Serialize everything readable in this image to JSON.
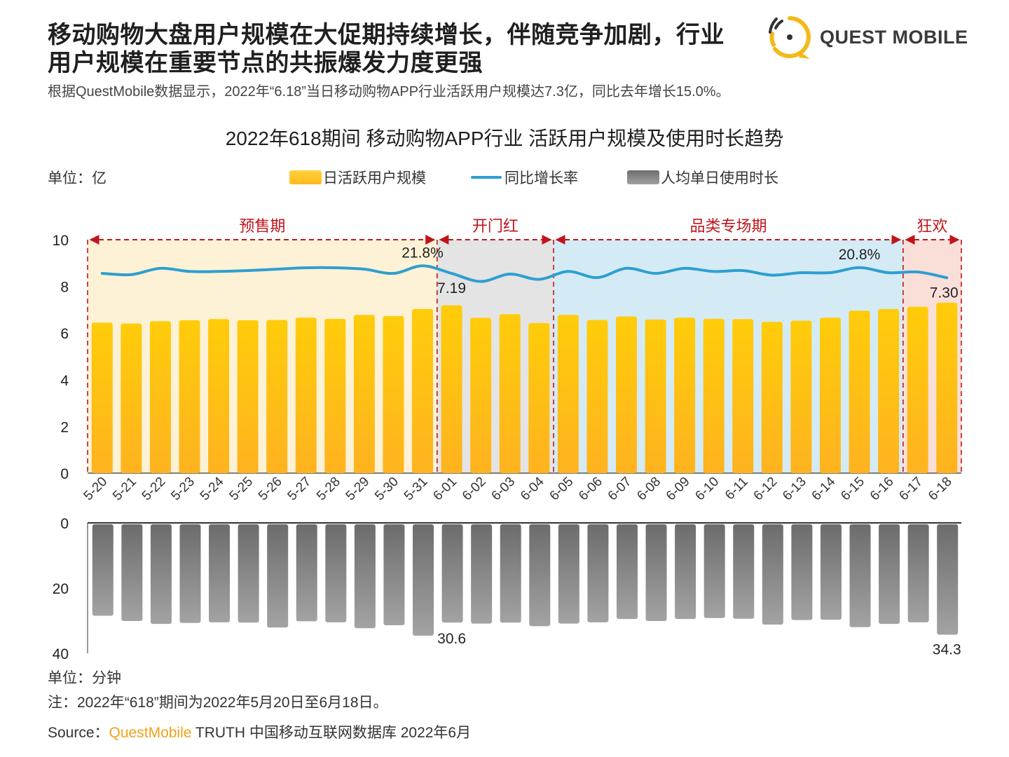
{
  "header": {
    "title_line1": "移动购物大盘用户规模在大促期持续增长，伴随竞争加剧，行业",
    "title_line2": "用户规模在重要节点的共振爆发力度更强",
    "subtitle": "根据QuestMobile数据显示，2022年“6.18”当日移动购物APP行业活跃用户规模达7.3亿，同比去年增长15.0%。",
    "logo_text": "QUEST MOBILE"
  },
  "footer": {
    "unit_bottom": "单位：分钟",
    "note": "注：2022年“618”期间为2022年5月20日至6月18日。",
    "source_prefix": "Source：",
    "source_brand": "QuestMobile",
    "source_rest": " TRUTH 中国移动互联网数据库 2022年6月"
  },
  "colors": {
    "bar_yellow": "#ffc20e",
    "line_blue": "#2e9fd0",
    "bar_gray": "#8c8c8c",
    "phase_red": "#c0141c",
    "brand_orange": "#f0a218"
  },
  "chart_data": {
    "type": "bar",
    "title": "2022年618期间 移动购物APP行业 活跃用户规模及使用时长趋势",
    "unit_top": "单位：亿",
    "categories": [
      "5-20",
      "5-21",
      "5-22",
      "5-23",
      "5-24",
      "5-25",
      "5-26",
      "5-27",
      "5-28",
      "5-29",
      "5-30",
      "5-31",
      "6-01",
      "6-02",
      "6-03",
      "6-04",
      "6-05",
      "6-06",
      "6-07",
      "6-08",
      "6-09",
      "6-10",
      "6-11",
      "6-12",
      "6-13",
      "6-14",
      "6-15",
      "6-16",
      "6-17",
      "6-18"
    ],
    "legend": [
      "日活跃用户规模",
      "同比增长率",
      "人均单日使用时长"
    ],
    "legend_position": "top",
    "phases": [
      {
        "label": "预售期",
        "start": 0,
        "end": 11,
        "color": "#fdf2d6"
      },
      {
        "label": "开门红",
        "start": 12,
        "end": 15,
        "color": "#e4e4e4"
      },
      {
        "label": "品类专场期",
        "start": 16,
        "end": 27,
        "color": "#d4ebf6"
      },
      {
        "label": "狂欢",
        "start": 28,
        "end": 29,
        "color": "#fadfd9"
      }
    ],
    "series": [
      {
        "name": "日活跃用户规模",
        "type": "bar",
        "unit": "亿",
        "values": [
          6.45,
          6.41,
          6.51,
          6.55,
          6.6,
          6.55,
          6.56,
          6.66,
          6.61,
          6.78,
          6.73,
          7.03,
          7.19,
          6.65,
          6.81,
          6.43,
          6.78,
          6.56,
          6.71,
          6.58,
          6.66,
          6.61,
          6.6,
          6.48,
          6.53,
          6.66,
          6.96,
          7.03,
          7.13,
          7.3
        ]
      },
      {
        "name": "同比增长率",
        "type": "line",
        "unit": "%",
        "values": [
          17.5,
          16.8,
          20.4,
          18.6,
          18.6,
          19.1,
          19.9,
          20.7,
          20.7,
          19.9,
          17.5,
          21.8,
          17.5,
          12.9,
          17.1,
          14.1,
          18.6,
          15.1,
          20.4,
          17.5,
          20.4,
          18.6,
          19.1,
          16.5,
          17.9,
          17.9,
          20.8,
          17.9,
          18.3,
          15.0
        ]
      },
      {
        "name": "人均单日使用时长",
        "type": "bar",
        "unit": "分钟",
        "values": [
          28.5,
          30.1,
          31.0,
          30.7,
          30.5,
          30.6,
          32.1,
          30.2,
          30.5,
          32.3,
          31.4,
          34.6,
          30.6,
          30.9,
          30.6,
          31.7,
          30.9,
          30.5,
          29.5,
          30.1,
          29.5,
          29.2,
          29.4,
          31.2,
          29.8,
          29.7,
          32.0,
          31.0,
          30.5,
          34.3
        ]
      }
    ],
    "y_top": {
      "ylim": [
        0,
        10
      ],
      "ticks": [
        "0",
        "2",
        "4",
        "6",
        "8",
        "10"
      ]
    },
    "y_bottom": {
      "ylim": [
        0,
        40
      ],
      "ticks": [
        "0",
        "20",
        "40"
      ],
      "inverted": true
    },
    "annotations": [
      {
        "series": 1,
        "index": 11,
        "text": "21.8%"
      },
      {
        "series": 0,
        "index": 12,
        "text": "7.19"
      },
      {
        "series": 1,
        "index": 26,
        "text": "20.8%"
      },
      {
        "series": 0,
        "index": 29,
        "text": "7.30"
      },
      {
        "series": 2,
        "index": 12,
        "text": "30.6"
      },
      {
        "series": 2,
        "index": 29,
        "text": "34.3"
      }
    ],
    "grid": false
  }
}
